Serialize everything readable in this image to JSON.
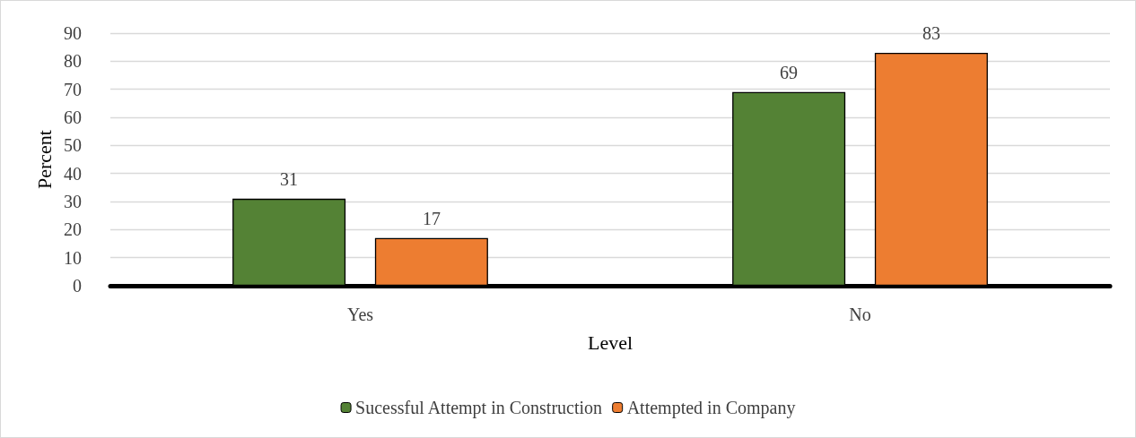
{
  "chart_data": {
    "type": "bar",
    "xlabel": "Level",
    "ylabel": "Percent",
    "categories": [
      "Yes",
      "No"
    ],
    "series": [
      {
        "name": "Sucessful Attempt in Construction",
        "color": "#548235",
        "values": [
          31,
          69
        ]
      },
      {
        "name": "Attempted in Company",
        "color": "#ed7d31",
        "values": [
          17,
          83
        ]
      }
    ],
    "ylim": [
      0,
      90
    ],
    "yticks": [
      0,
      10,
      20,
      30,
      40,
      50,
      60,
      70,
      80,
      90
    ],
    "grid": "y",
    "legend": "bottom",
    "data_labels": true
  }
}
